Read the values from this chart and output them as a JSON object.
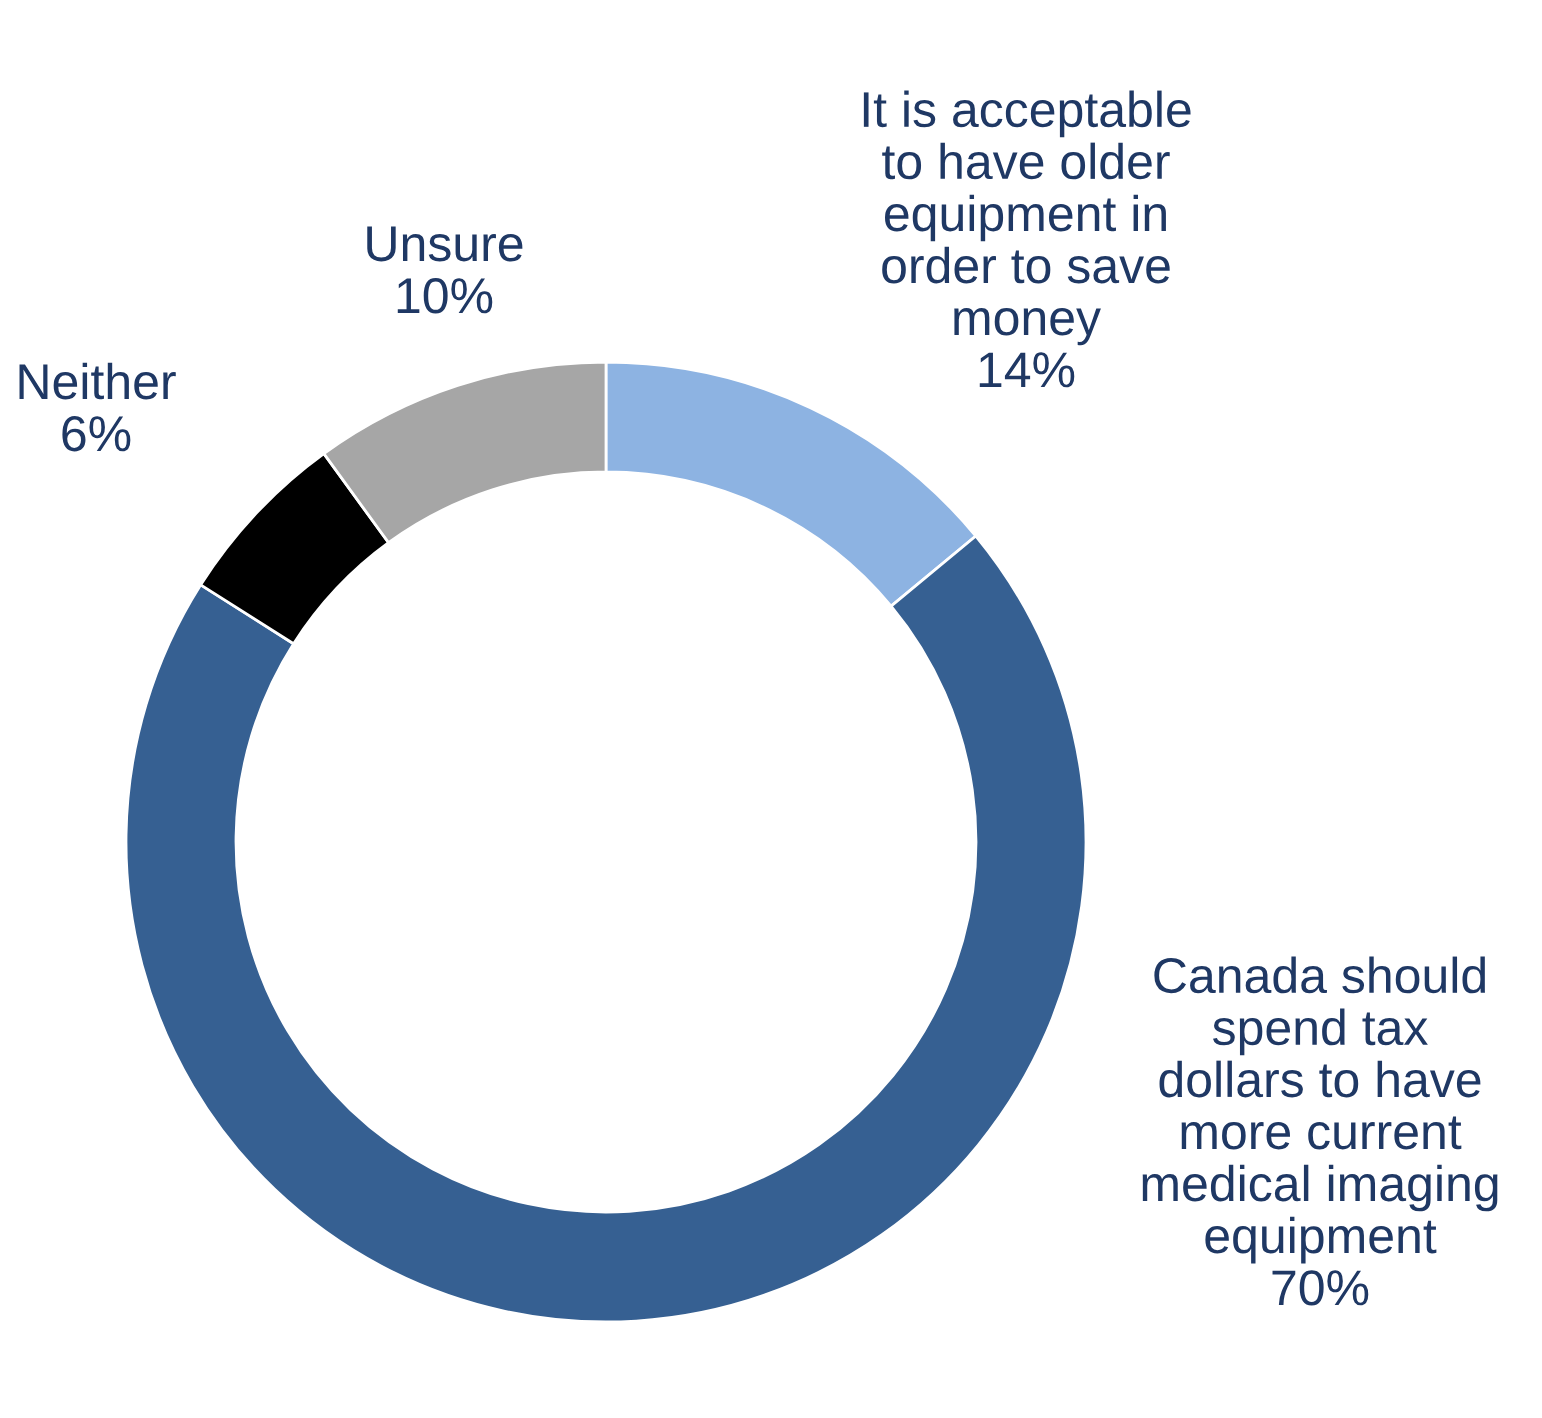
{
  "chart_data": {
    "type": "donut",
    "categories": [
      "It is acceptable\nto have older\nequipment in\norder to save\nmoney",
      "Canada should\nspend tax\ndollars to have\nmore current\nmedical imaging\nequipment",
      "Neither",
      "Unsure"
    ],
    "values": [
      14,
      70,
      6,
      10
    ],
    "value_labels": [
      "14%",
      "70%",
      "6%",
      "10%"
    ],
    "colors": [
      "#8db3e2",
      "#366092",
      "#000000",
      "#a6a6a6"
    ],
    "legend": false
  }
}
